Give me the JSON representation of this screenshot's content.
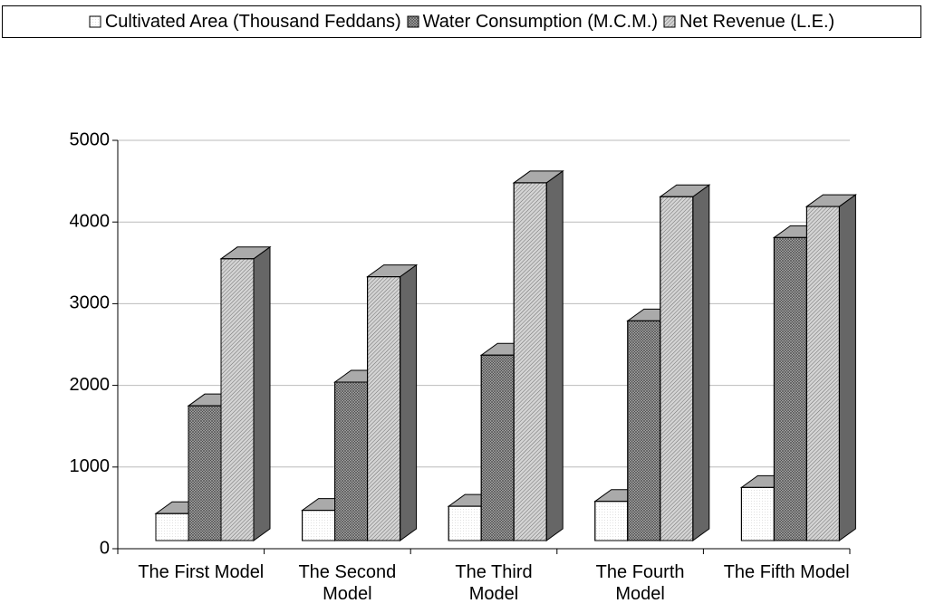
{
  "chart_data": {
    "type": "bar3d",
    "categories": [
      "The First Model",
      "The Second Model",
      "The Third Model",
      "The Fourth Model",
      "The Fifth Model"
    ],
    "series": [
      {
        "name": "Cultivated Area (Thousand Feddans)",
        "color": "#ffffff",
        "values": [
          330,
          370,
          420,
          480,
          650
        ]
      },
      {
        "name": "Water Consumption (M.C.M.)",
        "color": "#a8a8a8",
        "values": [
          1650,
          1940,
          2270,
          2690,
          3710
        ]
      },
      {
        "name": "Net Revenue (L.E.)",
        "color": "#d4d4d4",
        "values": [
          3450,
          3230,
          4380,
          4210,
          4090
        ]
      }
    ],
    "ylim": [
      0,
      5000
    ],
    "yticks": [
      0,
      1000,
      2000,
      3000,
      4000,
      5000
    ],
    "grid": true,
    "legend": "top"
  }
}
